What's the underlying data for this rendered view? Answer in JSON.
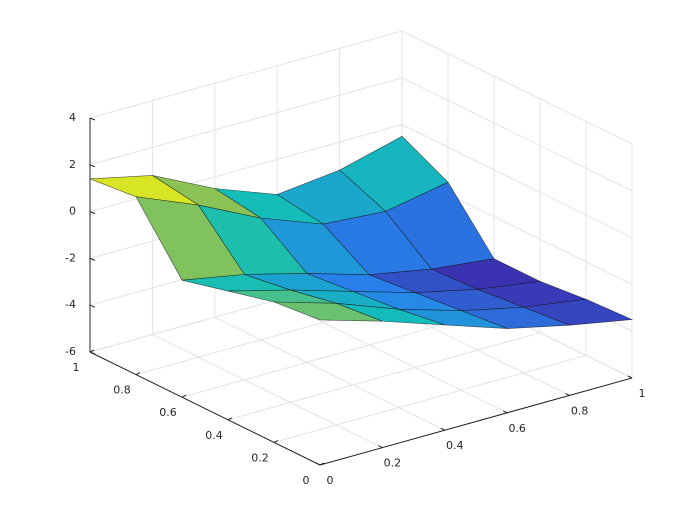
{
  "chart_data": {
    "type": "surface",
    "colormap": "parula",
    "grid": true,
    "x": [
      0,
      0.2,
      0.4,
      0.6,
      0.8,
      1
    ],
    "y": [
      0,
      0.2,
      0.4,
      0.6,
      0.8,
      1
    ],
    "z": [
      [
        0.2,
        -0.6,
        -1.5,
        -2.4,
        -3.0,
        -3.5
      ],
      [
        0,
        -0.8,
        -1.8,
        -2.6,
        -3.2,
        -3.6
      ],
      [
        -0.5,
        -1.2,
        -2.0,
        -2.8,
        -3.4,
        -3.8
      ],
      [
        -1.0,
        -1.5,
        -2.2,
        -3.0,
        -3.5,
        -3.8
      ],
      [
        1.6,
        0.5,
        -0.8,
        -1.8,
        -2.0,
        -1.5
      ],
      [
        1.4,
        0.8,
        -0.5,
        -1.5,
        -1.2,
        -0.5
      ]
    ],
    "xlim": [
      0,
      1
    ],
    "xticks": [
      0,
      0.2,
      0.4,
      0.6,
      0.8,
      1
    ],
    "ylim": [
      0,
      1
    ],
    "yticks": [
      0,
      0.2,
      0.4,
      0.6,
      0.8,
      1
    ],
    "zlim": [
      -6,
      4
    ],
    "zticks": [
      -6,
      -4,
      -2,
      0,
      2,
      4
    ]
  }
}
